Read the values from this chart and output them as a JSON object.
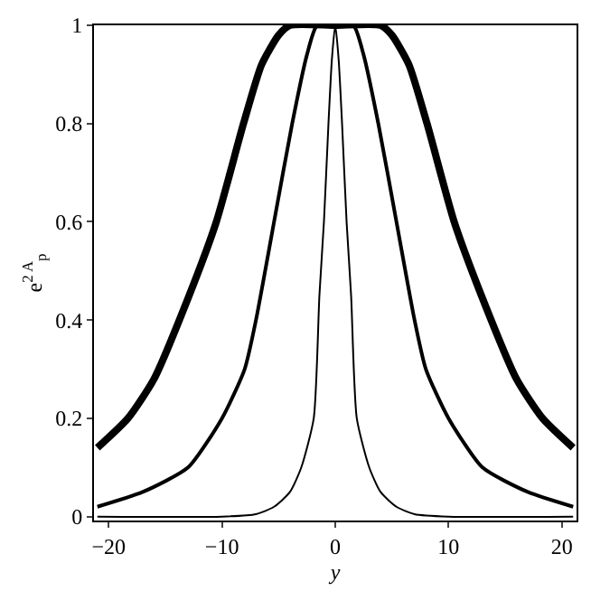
{
  "chart_data": {
    "type": "line",
    "xlabel": "y",
    "ylabel": "e$^{2 A}$$_{p}$",
    "series": [
      {
        "color": "#000000",
        "x": [
          -21,
          -18.3,
          -16,
          -12.9,
          -10.5,
          -8.1,
          -6.5,
          -5,
          -4,
          0,
          4,
          5,
          6.5,
          8.1,
          10.5,
          12.9,
          16,
          18.3,
          21
        ],
        "values": [
          0.14,
          0.2,
          0.28,
          0.45,
          0.6,
          0.8,
          0.92,
          0.98,
          1,
          1,
          1,
          0.98,
          0.92,
          0.8,
          0.6,
          0.45,
          0.28,
          0.2,
          0.14
        ]
      },
      {
        "color": "#000000",
        "x": [
          -21,
          -17,
          -13,
          -10,
          -8,
          -7,
          -5.4,
          -3.8,
          -2.5,
          -1.6,
          0,
          1.6,
          2.5,
          3.8,
          5.4,
          7,
          8,
          10,
          13,
          17,
          21
        ],
        "values": [
          0.02,
          0.05,
          0.1,
          0.2,
          0.3,
          0.4,
          0.6,
          0.8,
          0.94,
          1,
          1,
          1,
          0.94,
          0.8,
          0.6,
          0.4,
          0.3,
          0.2,
          0.1,
          0.05,
          0.02
        ]
      },
      {
        "color": "#000000",
        "x": [
          -21,
          -10,
          -7,
          -5.4,
          -4,
          -3,
          -1.9,
          -1.4,
          -1,
          -0.6,
          -0.3,
          0,
          0.3,
          0.6,
          1,
          1.4,
          1.9,
          3,
          4,
          5.4,
          7,
          10,
          21
        ],
        "values": [
          0,
          0,
          0.005,
          0.02,
          0.05,
          0.1,
          0.2,
          0.45,
          0.6,
          0.8,
          0.93,
          1,
          0.93,
          0.8,
          0.6,
          0.45,
          0.2,
          0.1,
          0.05,
          0.02,
          0.005,
          0,
          0
        ]
      }
    ],
    "xlim": [
      -21.3,
      21.3
    ],
    "ylim": [
      -0.008,
      1.0
    ],
    "xticks": [
      {
        "value": -20,
        "label": "−20"
      },
      {
        "value": -10,
        "label": "−10"
      },
      0,
      10,
      20
    ],
    "yticks": [
      0,
      0.2,
      0.4,
      0.6,
      0.8,
      1
    ],
    "line_style": "solid",
    "marker": "none"
  }
}
